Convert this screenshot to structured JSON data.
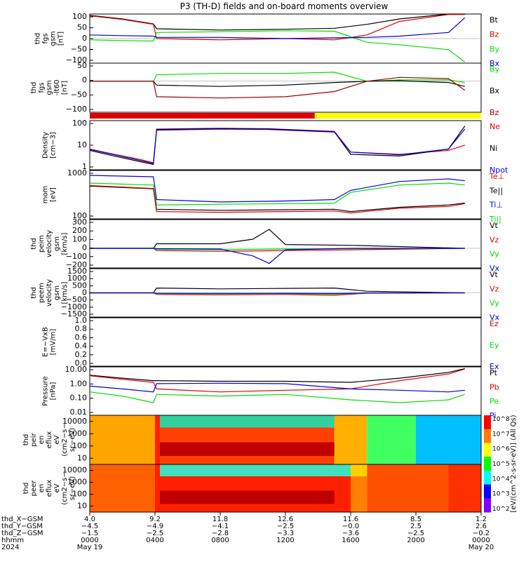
{
  "title": "P3 (TH-D) fields and on-board moments overview",
  "colors": {
    "black": "#000000",
    "red": "#e00000",
    "green": "#00e000",
    "blue": "#0000e0",
    "darkred": "#a00000",
    "yellow": "#ffff00"
  },
  "chart_data": [
    {
      "id": "p1",
      "type": "line",
      "ylabel": [
        "thd",
        "fgs",
        "gsm",
        "[nT]"
      ],
      "yticks": [
        "100",
        "50",
        "0",
        "−50",
        "−100"
      ],
      "ylim": [
        -100,
        100
      ],
      "legend": [
        {
          "name": "Bt",
          "color": "black"
        },
        {
          "name": "Bz",
          "color": "red"
        },
        {
          "name": "By",
          "color": "green"
        },
        {
          "name": "Bx",
          "color": "blue"
        }
      ],
      "series": [
        {
          "name": "Bt",
          "x": [
            0,
            2,
            3.9,
            4.1,
            8,
            12,
            15,
            17,
            19,
            22,
            23
          ],
          "y": [
            95,
            80,
            60,
            40,
            35,
            38,
            42,
            58,
            80,
            100,
            100
          ]
        },
        {
          "name": "Bz",
          "x": [
            0,
            2,
            3.9,
            4.1,
            8,
            12,
            15,
            17,
            19,
            22,
            23
          ],
          "y": [
            93,
            78,
            58,
            0,
            -5,
            0,
            -5,
            15,
            70,
            98,
            98
          ]
        },
        {
          "name": "By",
          "x": [
            0,
            2,
            3.9,
            4.1,
            8,
            12,
            15,
            17,
            19,
            22,
            23
          ],
          "y": [
            -5,
            -8,
            -10,
            25,
            28,
            32,
            30,
            -15,
            -25,
            -45,
            -95
          ]
        },
        {
          "name": "Bx",
          "x": [
            0,
            2,
            3.9,
            4.1,
            8,
            12,
            15,
            17,
            19,
            22,
            23
          ],
          "y": [
            15,
            12,
            10,
            5,
            5,
            0,
            3,
            5,
            10,
            25,
            85
          ]
        }
      ]
    },
    {
      "id": "p2",
      "type": "line",
      "ylabel": [
        "thd",
        "fgs",
        "gsm",
        "-lt60",
        "[nT]"
      ],
      "yticks": [
        "50",
        "0",
        "−50",
        "−100"
      ],
      "ylim": [
        -120,
        70
      ],
      "legend": [
        {
          "name": "By",
          "color": "green"
        },
        {
          "name": "Bx",
          "color": "black"
        },
        {
          "name": "Bz",
          "color": "darkred"
        }
      ],
      "series": [
        {
          "name": "By",
          "x": [
            0,
            3.9,
            4.1,
            8,
            12,
            15,
            17,
            19,
            22,
            23
          ],
          "y": [
            0,
            0,
            25,
            30,
            30,
            35,
            0,
            5,
            5,
            -5
          ]
        },
        {
          "name": "Bx",
          "x": [
            0,
            3.9,
            4.1,
            8,
            12,
            15,
            17,
            19,
            22,
            23
          ],
          "y": [
            0,
            0,
            -15,
            -20,
            -15,
            -5,
            0,
            2,
            -5,
            -20
          ]
        },
        {
          "name": "Bz",
          "x": [
            0,
            3.9,
            4.1,
            8,
            12,
            15,
            17,
            19,
            22,
            23
          ],
          "y": [
            0,
            0,
            -60,
            -65,
            -60,
            -40,
            0,
            15,
            10,
            -35
          ]
        }
      ]
    },
    {
      "id": "p3",
      "type": "line",
      "log": true,
      "ylabel": [
        "Density",
        "[cm−3]"
      ],
      "yticks": [
        "100",
        "10",
        "1"
      ],
      "ylim": [
        0.2,
        120
      ],
      "legend": [
        {
          "name": "Ne",
          "color": "red"
        },
        {
          "name": "Ni",
          "color": "black"
        },
        {
          "name": "Npot",
          "color": "blue"
        }
      ],
      "series": [
        {
          "name": "Ne",
          "x": [
            0,
            1.5,
            3,
            3.9,
            4.1,
            8,
            11,
            15,
            16,
            19,
            22,
            23
          ],
          "y": [
            3,
            1.5,
            0.8,
            0.5,
            40,
            45,
            42,
            30,
            2,
            1.5,
            2.5,
            5
          ]
        },
        {
          "name": "Ni",
          "x": [
            0,
            1.5,
            3,
            3.9,
            4.1,
            8,
            11,
            15,
            16,
            19,
            22,
            23
          ],
          "y": [
            2.5,
            1.2,
            0.6,
            0.4,
            38,
            42,
            40,
            28,
            1.5,
            1.2,
            3,
            60
          ]
        },
        {
          "name": "Npot",
          "x": [
            0,
            1.5,
            3,
            3.9,
            4.1,
            8,
            11,
            15,
            16,
            19,
            22,
            23
          ],
          "y": [
            2.8,
            1.4,
            0.7,
            0.45,
            35,
            40,
            38,
            27,
            2,
            1.4,
            3,
            40
          ]
        }
      ]
    },
    {
      "id": "p4",
      "type": "line",
      "log": true,
      "ylabel": [
        "mom",
        "[eV]"
      ],
      "yticks": [
        "1000",
        "100"
      ],
      "ylim": [
        40,
        4000
      ],
      "legend": [
        {
          "name": "Te⊥",
          "color": "red"
        },
        {
          "name": "Te||",
          "color": "black"
        },
        {
          "name": "Ti⊥",
          "color": "blue"
        },
        {
          "name": "Ti||",
          "color": "green"
        }
      ],
      "series": [
        {
          "name": "Ti⊥",
          "x": [
            0,
            3.9,
            4.1,
            8,
            12,
            15,
            16,
            19,
            22,
            23
          ],
          "y": [
            2500,
            2200,
            250,
            200,
            220,
            250,
            600,
            1400,
            1800,
            1500
          ]
        },
        {
          "name": "Ti||",
          "x": [
            0,
            3.9,
            4.1,
            8,
            12,
            15,
            16,
            19,
            22,
            23
          ],
          "y": [
            1200,
            1000,
            150,
            160,
            170,
            180,
            500,
            1000,
            1200,
            1000
          ]
        },
        {
          "name": "Te||",
          "x": [
            0,
            3.9,
            4.1,
            8,
            12,
            15,
            16,
            19,
            22,
            23
          ],
          "y": [
            900,
            700,
            100,
            90,
            95,
            100,
            80,
            120,
            150,
            180
          ]
        },
        {
          "name": "Te⊥",
          "x": [
            0,
            3.9,
            4.1,
            8,
            12,
            15,
            16,
            19,
            22,
            23
          ],
          "y": [
            950,
            720,
            80,
            75,
            80,
            85,
            70,
            110,
            130,
            170
          ]
        }
      ]
    },
    {
      "id": "p5",
      "type": "line",
      "ylabel": [
        "thd",
        "peim",
        "velocity",
        "gsm",
        "[km/s]"
      ],
      "yticks": [
        "300",
        "200",
        "100",
        "0",
        "−100",
        "−200"
      ],
      "ylim": [
        -260,
        380
      ],
      "legend": [
        {
          "name": "Vt",
          "color": "black"
        },
        {
          "name": "Vz",
          "color": "red"
        },
        {
          "name": "Vy",
          "color": "green"
        },
        {
          "name": "Vx",
          "color": "blue"
        }
      ],
      "series": [
        {
          "name": "Vt",
          "x": [
            0,
            3.9,
            4.1,
            8,
            10,
            11,
            12,
            16,
            23
          ],
          "y": [
            0,
            0,
            60,
            60,
            120,
            250,
            50,
            40,
            0
          ]
        },
        {
          "name": "Vz",
          "x": [
            0,
            3.9,
            4.1,
            8,
            12,
            16,
            23
          ],
          "y": [
            0,
            0,
            -30,
            -40,
            -30,
            -20,
            0
          ]
        },
        {
          "name": "Vy",
          "x": [
            0,
            3.9,
            4.1,
            8,
            12,
            16,
            23
          ],
          "y": [
            0,
            0,
            -15,
            -20,
            -10,
            -5,
            0
          ]
        },
        {
          "name": "Vx",
          "x": [
            0,
            3.9,
            4.1,
            8,
            10,
            11,
            12,
            16,
            23
          ],
          "y": [
            0,
            0,
            -5,
            -10,
            -100,
            -200,
            -20,
            0,
            0
          ]
        }
      ]
    },
    {
      "id": "p6",
      "type": "line",
      "ylabel": [
        "thd",
        "peem",
        "velocity",
        "gsm",
        "[km/s]"
      ],
      "yticks": [
        "1500",
        "1000",
        "500",
        "0",
        "−500",
        "−1000",
        "−1500"
      ],
      "ylim": [
        -1500,
        1500
      ],
      "legend": [
        {
          "name": "Vt",
          "color": "black"
        },
        {
          "name": "Vz",
          "color": "red"
        },
        {
          "name": "Vy",
          "color": "green"
        },
        {
          "name": "Vx",
          "color": "blue"
        }
      ],
      "series": [
        {
          "name": "Vt",
          "x": [
            0,
            3.9,
            4.1,
            8,
            12,
            15,
            17,
            23
          ],
          "y": [
            0,
            0,
            300,
            250,
            280,
            300,
            100,
            0
          ]
        },
        {
          "name": "Vz",
          "x": [
            0,
            3.9,
            4.1,
            8,
            12,
            15,
            17,
            23
          ],
          "y": [
            0,
            0,
            -100,
            -120,
            -100,
            -150,
            -20,
            0
          ]
        },
        {
          "name": "Vy",
          "x": [
            0,
            3.9,
            4.1,
            8,
            12,
            15,
            17,
            23
          ],
          "y": [
            0,
            0,
            -50,
            -60,
            -50,
            -80,
            -10,
            0
          ]
        },
        {
          "name": "Vx",
          "x": [
            0,
            3.9,
            4.1,
            8,
            12,
            15,
            17,
            23
          ],
          "y": [
            0,
            0,
            -20,
            -30,
            -20,
            -40,
            0,
            0
          ]
        }
      ]
    },
    {
      "id": "p7",
      "type": "line",
      "ylabel": [
        "E=−VxB",
        "[mV/m]"
      ],
      "yticks": [
        "1.0",
        "0.8",
        "0.6",
        "0.4",
        "0.2",
        "0.0"
      ],
      "ylim": [
        0,
        1
      ],
      "legend": [
        {
          "name": "Ez",
          "color": "red"
        },
        {
          "name": "Ey",
          "color": "green"
        },
        {
          "name": "Ex",
          "color": "blue"
        }
      ],
      "series": []
    },
    {
      "id": "p8",
      "type": "line",
      "log": true,
      "ylabel": [
        "Pressure",
        "[nPa]"
      ],
      "yticks": [
        "10.00",
        "1.00",
        "0.10",
        "0.01"
      ],
      "ylim": [
        0.006,
        20
      ],
      "legend": [
        {
          "name": "Pt",
          "color": "black"
        },
        {
          "name": "Pb",
          "color": "red"
        },
        {
          "name": "Pe",
          "color": "green"
        },
        {
          "name": "Pi",
          "color": "blue"
        }
      ],
      "series": [
        {
          "name": "Pt",
          "x": [
            0,
            2,
            3.9,
            4.1,
            8,
            12,
            16,
            19,
            22,
            23
          ],
          "y": [
            5,
            3,
            2,
            2,
            1.8,
            1.8,
            1.5,
            3,
            8,
            15
          ]
        },
        {
          "name": "Pb",
          "x": [
            0,
            2,
            3.9,
            4.1,
            8,
            12,
            16,
            19,
            22,
            23
          ],
          "y": [
            4.5,
            2.5,
            1.5,
            0.5,
            0.3,
            0.4,
            0.5,
            2,
            6,
            14
          ]
        },
        {
          "name": "Pe",
          "x": [
            0,
            2,
            3.9,
            4.1,
            8,
            12,
            16,
            19,
            22,
            23
          ],
          "y": [
            0.3,
            0.15,
            0.05,
            0.2,
            0.15,
            0.2,
            0.08,
            0.05,
            0.08,
            0.2
          ]
        },
        {
          "name": "Pi",
          "x": [
            0,
            2,
            3.9,
            4.1,
            8,
            12,
            16,
            19,
            22,
            23
          ],
          "y": [
            0.8,
            0.5,
            0.3,
            1.2,
            1.3,
            1.2,
            0.5,
            0.4,
            0.3,
            0.4
          ]
        }
      ]
    },
    {
      "id": "p9",
      "type": "heatmap",
      "ylabel": [
        "thd",
        "peir",
        "en",
        "eflux",
        "eV",
        "(cm2−s−",
        "sr−eV)"
      ],
      "yticks": [
        "10000",
        "1000",
        "100",
        "10"
      ],
      "ylim": [
        5,
        25000
      ]
    },
    {
      "id": "p10",
      "type": "heatmap",
      "ylabel": [
        "thd",
        "peer",
        "en",
        "eflux",
        "eV",
        "(cm2−s−",
        "sr−eV)"
      ],
      "yticks": [
        "10000",
        "1000",
        "100",
        "10"
      ],
      "ylim": [
        5,
        25000
      ]
    }
  ],
  "colorbar": {
    "labels": [
      "10^8",
      "10^7",
      "10^6",
      "10^5",
      "10^4",
      "10^3",
      "10^2"
    ],
    "title": "[eV/(cm^2-s-sr-eV)] (All Qs)"
  },
  "xaxis": {
    "row_labels": [
      "thd_X−GSM",
      "thd_Y−GSM",
      "thd_Z−GSM",
      "hhmm",
      "2024"
    ],
    "columns": [
      {
        "x": 0,
        "vals": [
          "4.0",
          "−4.5",
          "−1.5",
          "0000",
          "May 19"
        ]
      },
      {
        "x": 4,
        "vals": [
          "9.2",
          "−4.9",
          "−2.5",
          "0400",
          ""
        ]
      },
      {
        "x": 8,
        "vals": [
          "11.8",
          "−4.1",
          "−2.8",
          "0800",
          ""
        ]
      },
      {
        "x": 12,
        "vals": [
          "12.6",
          "−2.5",
          "−3.3",
          "1200",
          ""
        ]
      },
      {
        "x": 16,
        "vals": [
          "11.6",
          "−0.0",
          "−3.6",
          "1600",
          ""
        ]
      },
      {
        "x": 20,
        "vals": [
          "8.5",
          "2.5",
          "−2.5",
          "2000",
          ""
        ]
      },
      {
        "x": 24,
        "vals": [
          "1.2",
          "2.6",
          "−0.2",
          "0000",
          "May 20"
        ]
      }
    ]
  }
}
